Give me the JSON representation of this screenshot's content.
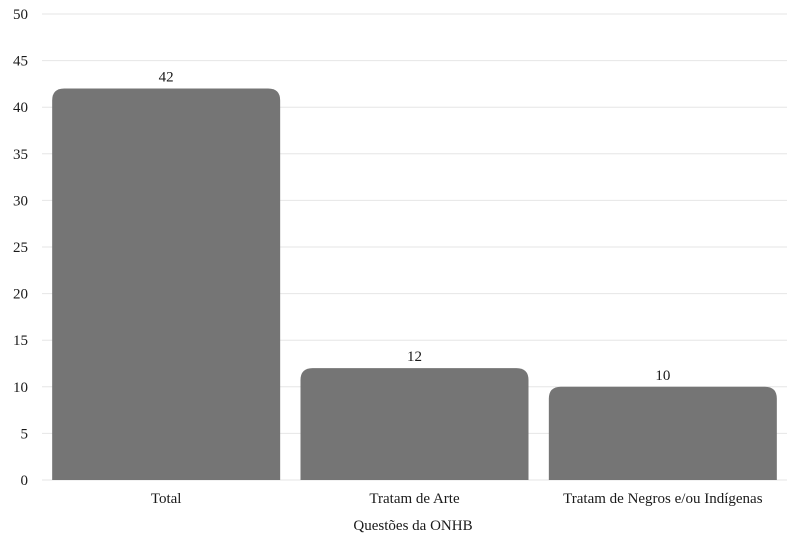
{
  "chart_data": {
    "type": "bar",
    "title": "",
    "xlabel": "Questões da ONHB",
    "ylabel": "",
    "categories": [
      "Total",
      "Tratam de Arte",
      "Tratam de Negros e/ou Indígenas"
    ],
    "values": [
      42,
      12,
      10
    ],
    "ylim": [
      0,
      50
    ],
    "yticks": [
      0,
      5,
      10,
      15,
      20,
      25,
      30,
      35,
      40,
      45,
      50
    ],
    "grid": true,
    "legend": "none",
    "bar_color": "#757575"
  }
}
